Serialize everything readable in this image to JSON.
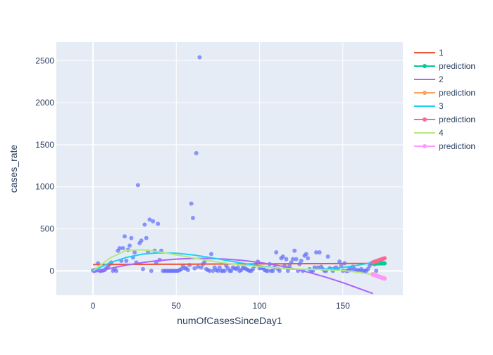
{
  "chart_data": {
    "type": "scatter",
    "title": "",
    "xlabel": "numOfCasesSinceDay1",
    "ylabel": "cases_rate",
    "xlim": [
      -22,
      186
    ],
    "ylim": [
      -290,
      2720
    ],
    "x_ticks": [
      0,
      50,
      100,
      150
    ],
    "y_ticks": [
      0,
      500,
      1000,
      1500,
      2000,
      2500
    ],
    "grid": true,
    "legend_position": "top-right",
    "points": {
      "color": "#636efa",
      "x": [
        0,
        1,
        2,
        3,
        4,
        5,
        6,
        7,
        8,
        9,
        10,
        11,
        12,
        13,
        14,
        15,
        16,
        17,
        18,
        19,
        20,
        21,
        22,
        23,
        24,
        25,
        26,
        27,
        28,
        29,
        30,
        31,
        32,
        33,
        34,
        35,
        36,
        37,
        38,
        39,
        40,
        41,
        42,
        43,
        44,
        45,
        46,
        47,
        48,
        49,
        50,
        51,
        52,
        53,
        54,
        55,
        56,
        57,
        58,
        59,
        60,
        61,
        62,
        63,
        64,
        65,
        66,
        67,
        68,
        69,
        70,
        71,
        72,
        73,
        74,
        75,
        76,
        77,
        78,
        79,
        80,
        81,
        82,
        83,
        84,
        85,
        86,
        87,
        88,
        89,
        90,
        91,
        92,
        93,
        94,
        95,
        96,
        97,
        98,
        99,
        100,
        101,
        102,
        103,
        104,
        105,
        106,
        107,
        108,
        109,
        110,
        111,
        112,
        113,
        114,
        115,
        116,
        117,
        118,
        119,
        120,
        121,
        122,
        123,
        124,
        125,
        126,
        127,
        128,
        129,
        130,
        131,
        132,
        133,
        134,
        135,
        136,
        137,
        138,
        139,
        140,
        141,
        142,
        143,
        144,
        145,
        146,
        147,
        148,
        149,
        150,
        151,
        152,
        153,
        154,
        155,
        156,
        157,
        158,
        159,
        160,
        161,
        162,
        163,
        164,
        165,
        166,
        167,
        168,
        169,
        170
      ],
      "y": [
        5,
        10,
        15,
        90,
        0,
        0,
        5,
        10,
        30,
        45,
        80,
        100,
        0,
        20,
        0,
        240,
        270,
        120,
        270,
        410,
        120,
        250,
        300,
        390,
        160,
        220,
        100,
        1020,
        330,
        360,
        20,
        550,
        390,
        230,
        610,
        0,
        590,
        240,
        100,
        560,
        130,
        240,
        0,
        0,
        0,
        0,
        0,
        0,
        0,
        0,
        0,
        0,
        10,
        20,
        60,
        30,
        30,
        10,
        70,
        800,
        630,
        30,
        1400,
        50,
        2540,
        40,
        80,
        110,
        20,
        10,
        0,
        200,
        0,
        40,
        10,
        0,
        40,
        0,
        0,
        0,
        60,
        30,
        0,
        0,
        40,
        30,
        20,
        40,
        0,
        10,
        40,
        30,
        20,
        10,
        0,
        0,
        20,
        60,
        80,
        110,
        30,
        40,
        30,
        10,
        0,
        0,
        80,
        0,
        0,
        40,
        220,
        20,
        0,
        150,
        170,
        60,
        140,
        0,
        60,
        100,
        140,
        240,
        140,
        0,
        80,
        120,
        0,
        180,
        200,
        150,
        20,
        0,
        0,
        40,
        220,
        40,
        220,
        50,
        20,
        0,
        0,
        170,
        30,
        20,
        0,
        30,
        40,
        20,
        110,
        60,
        0,
        90,
        0,
        0,
        30,
        10,
        50,
        20,
        0,
        10,
        0,
        20,
        0,
        0,
        0,
        20,
        60,
        90,
        100,
        80,
        0
      ]
    },
    "series": [
      {
        "name": "1",
        "color": "#ef553b",
        "marker": false,
        "x": [
          0,
          10,
          20,
          30,
          40,
          50,
          60,
          70,
          80,
          90,
          100,
          110,
          120,
          130,
          140,
          150,
          160,
          168
        ],
        "y": [
          75,
          76,
          77,
          78,
          79,
          79,
          80,
          81,
          82,
          82,
          83,
          84,
          85,
          86,
          86,
          87,
          88,
          88
        ]
      },
      {
        "name": "prediction",
        "color": "#00cc96",
        "marker": true,
        "x": [
          168,
          169,
          170,
          171,
          172,
          173,
          174,
          175
        ],
        "y": [
          88,
          88,
          88,
          88,
          89,
          89,
          89,
          89
        ]
      },
      {
        "name": "2",
        "color": "#ab63fa",
        "marker": false,
        "x": [
          0,
          10,
          20,
          30,
          40,
          50,
          60,
          70,
          80,
          90,
          100,
          110,
          120,
          130,
          140,
          150,
          160,
          168
        ],
        "y": [
          -20,
          28,
          68,
          100,
          124,
          140,
          148,
          148,
          140,
          124,
          100,
          68,
          28,
          -20,
          -76,
          -140,
          -212,
          -270
        ]
      },
      {
        "name": "prediction",
        "color": "#ffa15a",
        "marker": true,
        "x": [
          168,
          169,
          170,
          171,
          172,
          173,
          174,
          175
        ],
        "y": [
          -40,
          -50,
          -57,
          -64,
          -71,
          -78,
          -84,
          -90
        ]
      },
      {
        "name": "3",
        "color": "#19d3f3",
        "marker": false,
        "x": [
          0,
          10,
          20,
          30,
          40,
          50,
          60,
          70,
          80,
          90,
          100,
          110,
          120,
          130,
          140,
          150,
          160,
          168
        ],
        "y": [
          0,
          95,
          160,
          200,
          215,
          210,
          190,
          160,
          125,
          90,
          60,
          35,
          20,
          15,
          22,
          40,
          70,
          100
        ]
      },
      {
        "name": "prediction",
        "color": "#ff6692",
        "marker": true,
        "x": [
          168,
          169,
          170,
          171,
          172,
          173,
          174,
          175
        ],
        "y": [
          100,
          108,
          115,
          122,
          129,
          136,
          143,
          150
        ]
      },
      {
        "name": "4",
        "color": "#b6e880",
        "marker": false,
        "x": [
          0,
          10,
          20,
          30,
          40,
          50,
          60,
          70,
          80,
          90,
          100,
          110,
          120,
          130,
          140,
          150,
          160,
          168
        ],
        "y": [
          0,
          150,
          245,
          250,
          225,
          190,
          155,
          120,
          90,
          68,
          50,
          35,
          25,
          18,
          12,
          5,
          -20,
          -45
        ]
      },
      {
        "name": "prediction",
        "color": "#ff97ff",
        "marker": true,
        "x": [
          168,
          169,
          170,
          171,
          172,
          173,
          174,
          175
        ],
        "y": [
          -45,
          -52,
          -59,
          -66,
          -73,
          -80,
          -87,
          -94
        ]
      }
    ]
  }
}
